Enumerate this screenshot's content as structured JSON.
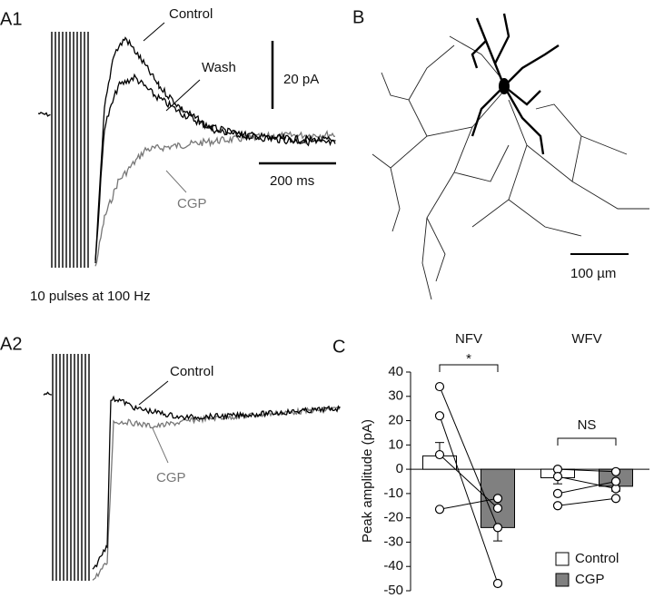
{
  "panels": {
    "a1": {
      "label": "A1",
      "traces": [
        "Control",
        "Wash",
        "CGP"
      ],
      "scale_y": "20 pA",
      "scale_x": "200 ms",
      "caption": "10 pulses at 100 Hz"
    },
    "a2": {
      "label": "A2",
      "traces": [
        "Control",
        "CGP"
      ]
    },
    "b": {
      "label": "B",
      "scale": "100 µm"
    }
  },
  "chart_data": {
    "type": "bar",
    "label": "C",
    "categories": [
      "NFV",
      "WFV"
    ],
    "ylabel": "Peak amplitude (pA)",
    "significance": [
      "*",
      "NS"
    ],
    "ylim": [
      -50,
      40
    ],
    "yticks": [
      -50,
      -40,
      -30,
      -20,
      -10,
      0,
      10,
      20,
      30,
      40
    ],
    "series": [
      {
        "name": "Control",
        "color": "#ffffff",
        "values": [
          5.5,
          -3.5
        ],
        "errors": [
          5.5,
          2.5
        ],
        "points": [
          [
            34,
            22,
            6,
            -16.5
          ],
          [
            0,
            -3,
            -10,
            -15
          ]
        ]
      },
      {
        "name": "CGP",
        "color": "#808080",
        "values": [
          -24,
          -7
        ],
        "errors": [
          5.5,
          2
        ],
        "points": [
          [
            -24,
            -47,
            -16,
            -12
          ],
          [
            -1,
            -8,
            -5,
            -12
          ]
        ]
      }
    ]
  }
}
